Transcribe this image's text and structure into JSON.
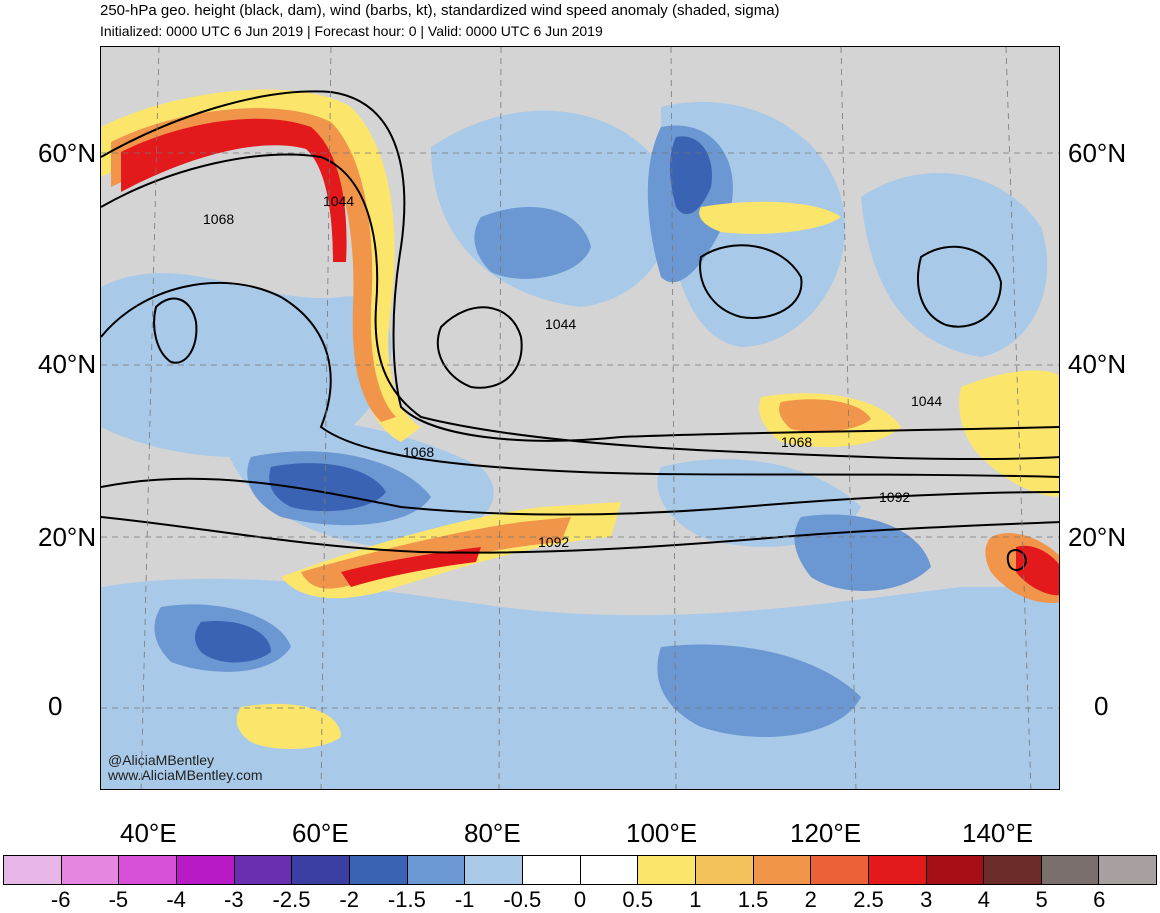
{
  "header": {
    "title": "250-hPa geo. height (black, dam), wind (barbs, kt), standardized wind speed anomaly (shaded, sigma)",
    "subtitle": "Initialized: 0000 UTC 6 Jun 2019 | Forecast hour: 0 | Valid: 0000 UTC 6 Jun 2019"
  },
  "map": {
    "lat_labels": [
      "60°N",
      "40°N",
      "20°N",
      "0"
    ],
    "lon_labels": [
      "40°E",
      "60°E",
      "80°E",
      "100°E",
      "120°E",
      "140°E"
    ],
    "contour_labels": [
      "1068",
      "1044",
      "1044",
      "1044",
      "1068",
      "1068",
      "1092",
      "1092"
    ],
    "credit_line1": "@AliciaMBentley",
    "credit_line2": "www.AliciaMBentley.com"
  },
  "colorbar": {
    "labels": [
      "-6",
      "-5",
      "-4",
      "-3",
      "-2.5",
      "-2",
      "-1.5",
      "-1",
      "-0.5",
      "0",
      "0.5",
      "1",
      "1.5",
      "2",
      "2.5",
      "3",
      "4",
      "5",
      "6"
    ],
    "colors": [
      "#e9b7e7",
      "#e586e1",
      "#d84fd8",
      "#b81bc6",
      "#6a2eb0",
      "#3b3fa3",
      "#3b63b4",
      "#6b97d2",
      "#a8c9e8",
      "#ffffff",
      "#ffffff",
      "#fbe66b",
      "#f4c25b",
      "#f0954a",
      "#ed6138",
      "#e4191c",
      "#a50f15",
      "#6b2c2a",
      "#7a6f6d",
      "#a8a0a0"
    ]
  }
}
